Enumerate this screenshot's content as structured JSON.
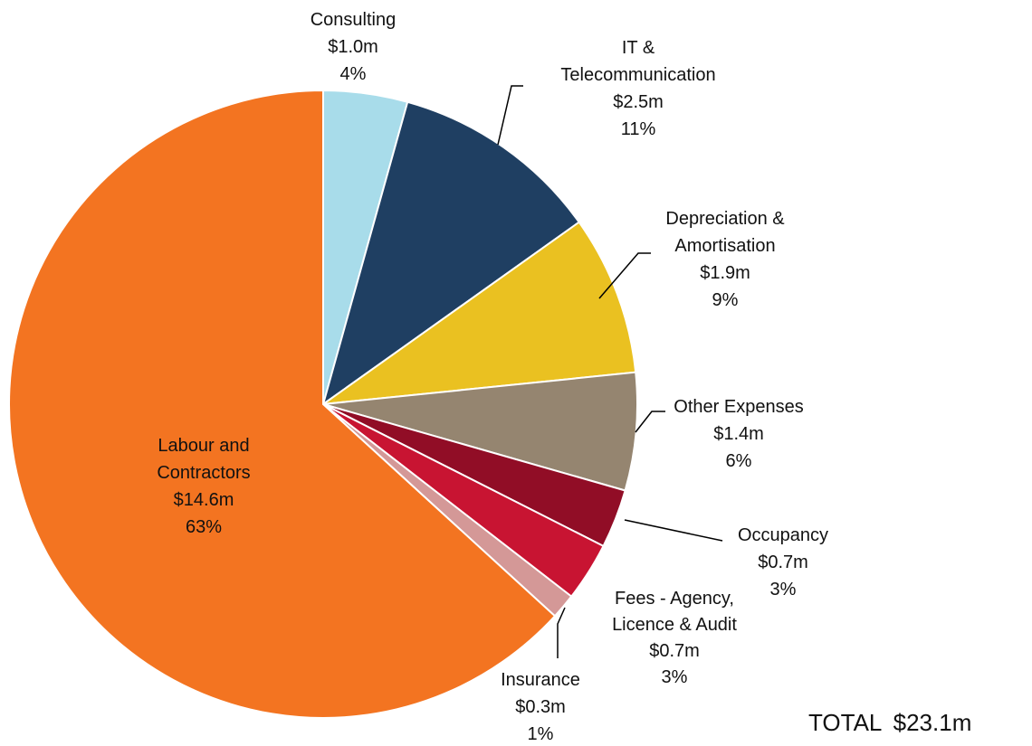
{
  "chart_data": {
    "type": "pie",
    "title": "",
    "start_angle_deg": 0,
    "direction": "clockwise",
    "total_label": "TOTAL",
    "total_value": "$23.1m",
    "slices": [
      {
        "category": [
          "Consulting"
        ],
        "value": 1.0,
        "value_label": "$1.0m",
        "percent_label": "4%",
        "color": "#a8dcea"
      },
      {
        "category": [
          "IT &",
          "Telecommunication"
        ],
        "value": 2.5,
        "value_label": "$2.5m",
        "percent_label": "11%",
        "color": "#1f3f62"
      },
      {
        "category": [
          "Depreciation &",
          "Amortisation"
        ],
        "value": 1.9,
        "value_label": "$1.9m",
        "percent_label": "9%",
        "color": "#eac121"
      },
      {
        "category": [
          "Other Expenses"
        ],
        "value": 1.4,
        "value_label": "$1.4m",
        "percent_label": "6%",
        "color": "#958570"
      },
      {
        "category": [
          "Occupancy"
        ],
        "value": 0.7,
        "value_label": "$0.7m",
        "percent_label": "3%",
        "color": "#910d26"
      },
      {
        "category": [
          "Fees - Agency,",
          "Licence & Audit"
        ],
        "value": 0.7,
        "value_label": "$0.7m",
        "percent_label": "3%",
        "color": "#c81432"
      },
      {
        "category": [
          "Insurance"
        ],
        "value": 0.3,
        "value_label": "$0.3m",
        "percent_label": "1%",
        "color": "#d49897"
      },
      {
        "category": [
          "Labour and",
          "Contractors"
        ],
        "value": 14.6,
        "value_label": "$14.6m",
        "percent_label": "63%",
        "color": "#f37421"
      }
    ]
  }
}
